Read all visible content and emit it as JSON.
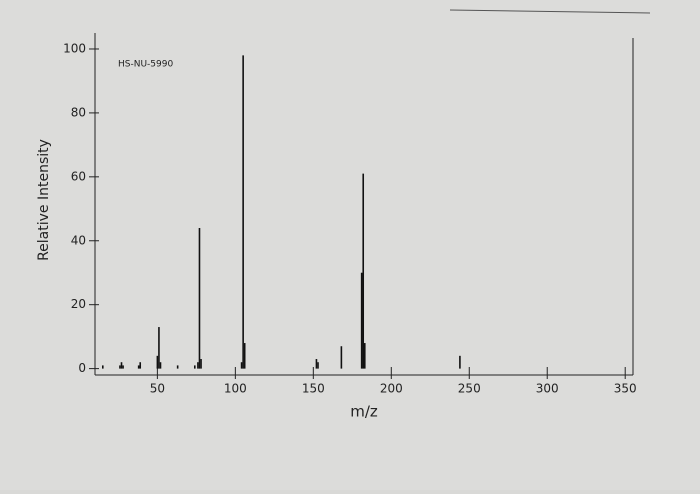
{
  "chart_data": {
    "type": "stem",
    "annotation": "HS-NU-5990",
    "xlabel": "m/z",
    "ylabel": "Relative Intensity",
    "x": [
      15,
      26,
      27,
      28,
      38,
      39,
      50,
      51,
      52,
      63,
      74,
      76,
      77,
      78,
      104,
      105,
      106,
      152,
      153,
      168,
      181,
      182,
      183,
      244
    ],
    "values": [
      1,
      1,
      2,
      1,
      1,
      2,
      4,
      13,
      2,
      1,
      1,
      2,
      44,
      3,
      2,
      98,
      8,
      3,
      2,
      7,
      30,
      61,
      8,
      4
    ],
    "color": "#111111",
    "xlim": [
      10,
      355
    ],
    "ylim": [
      -2,
      105
    ],
    "xticks": [
      50,
      100,
      150,
      200,
      250,
      300,
      350
    ],
    "yticks": [
      0,
      20,
      40,
      60,
      80,
      100
    ]
  }
}
